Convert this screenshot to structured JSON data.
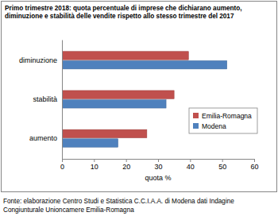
{
  "chart_data": {
    "type": "bar",
    "orientation": "horizontal",
    "title": "Primo trimestre 2018: quota percentuale di imprese che dichiarano aumento, diminuzione e stabilità delle vendite rispetto allo stesso trimestre del 2017",
    "xlabel": "quota %",
    "source": "Fonte: elaborazione Centro Studi e Statistica C.C.I.A.A. di Modena dati Indagine Congiunturale Unioncamere Emilia-Romagna",
    "categories": [
      "diminuzione",
      "stabilità",
      "aumento"
    ],
    "series": [
      {
        "name": "Emilia-Romagna",
        "color": "#c0504d",
        "values": [
          39.5,
          35,
          26.5
        ]
      },
      {
        "name": "Modena",
        "color": "#4f81bd",
        "values": [
          51.5,
          32.5,
          17.5
        ]
      }
    ],
    "xlim": [
      0,
      60
    ],
    "xticks": [
      0,
      10,
      20,
      30,
      40,
      50,
      60
    ],
    "grid": false,
    "legend": "right"
  }
}
